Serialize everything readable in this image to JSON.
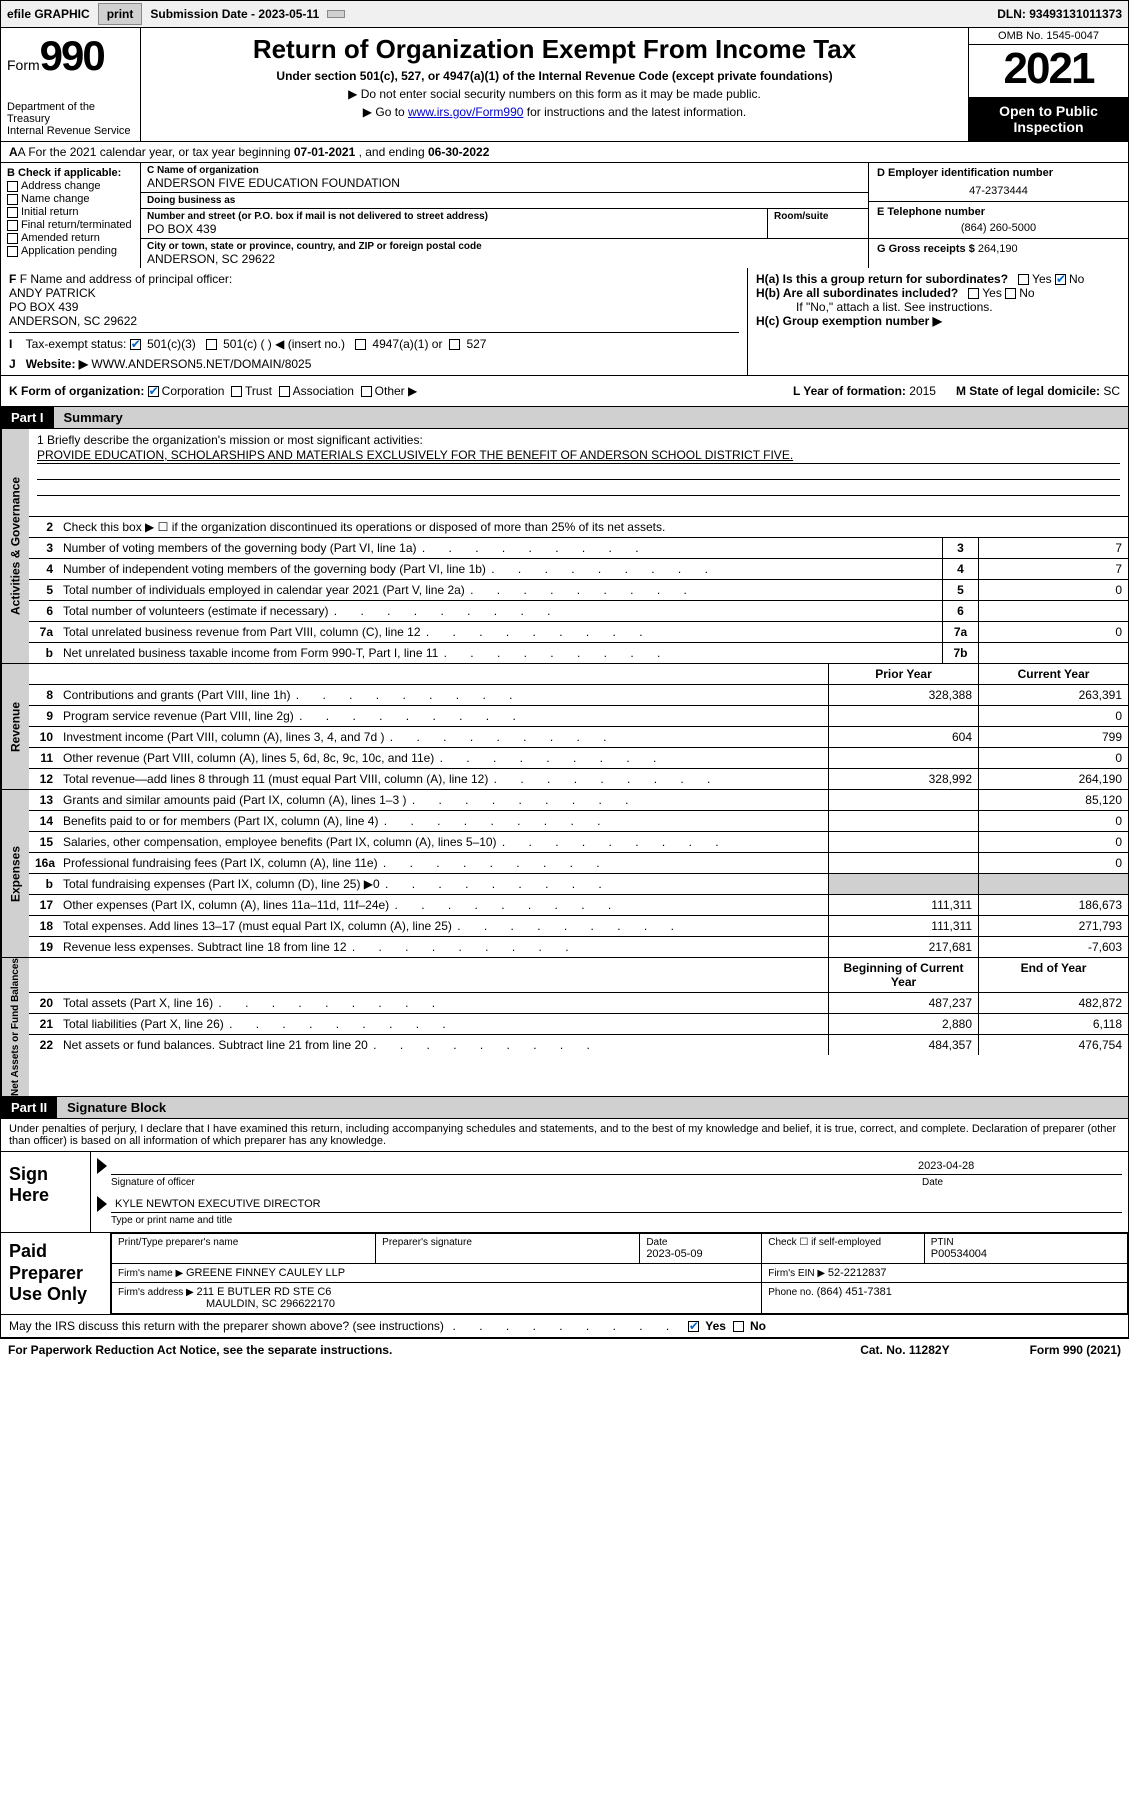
{
  "topbar": {
    "efile": "efile GRAPHIC",
    "print": "print",
    "subdate_label": "Submission Date - ",
    "subdate": "2023-05-11",
    "print_again": " ",
    "dln": "DLN: 93493131011373"
  },
  "header": {
    "form_prefix": "Form",
    "form_num": "990",
    "title": "Return of Organization Exempt From Income Tax",
    "subtitle": "Under section 501(c), 527, or 4947(a)(1) of the Internal Revenue Code (except private foundations)",
    "note1": "▶ Do not enter social security numbers on this form as it may be made public.",
    "note2_pre": "▶ Go to ",
    "note2_link": "www.irs.gov/Form990",
    "note2_post": " for instructions and the latest information.",
    "dept": "Department of the Treasury",
    "irs": "Internal Revenue Service",
    "omb": "OMB No. 1545-0047",
    "year": "2021",
    "inspect1": "Open to Public",
    "inspect2": "Inspection"
  },
  "rowA": {
    "text": "A For the 2021 calendar year, or tax year beginning ",
    "begin": "07-01-2021",
    "mid": " , and ending ",
    "end": "06-30-2022"
  },
  "colB": {
    "hdr": "B Check if applicable:",
    "items": [
      "Address change",
      "Name change",
      "Initial return",
      "Final return/terminated",
      "Amended return",
      "Application pending"
    ]
  },
  "colC": {
    "name_label": "C Name of organization",
    "name": "ANDERSON FIVE EDUCATION FOUNDATION",
    "dba_label": "Doing business as",
    "dba": "",
    "addr_label": "Number and street (or P.O. box if mail is not delivered to street address)",
    "room_label": "Room/suite",
    "addr": "PO BOX 439",
    "city_label": "City or town, state or province, country, and ZIP or foreign postal code",
    "city": "ANDERSON, SC  29622"
  },
  "colDE": {
    "d_label": "D Employer identification number",
    "d_val": "47-2373444",
    "e_label": "E Telephone number",
    "e_val": "(864) 260-5000",
    "g_label": "G Gross receipts $ ",
    "g_val": "264,190"
  },
  "rowF": {
    "label": "F Name and address of principal officer:",
    "l1": "ANDY PATRICK",
    "l2": "PO BOX 439",
    "l3": "ANDERSON, SC  29622"
  },
  "rowH": {
    "ha": "H(a)  Is this a group return for subordinates?",
    "hb": "H(b)  Are all subordinates included?",
    "hb_note": "If \"No,\" attach a list. See instructions.",
    "hc": "H(c)  Group exemption number ▶"
  },
  "rowI": {
    "label": "Tax-exempt status:",
    "o1": "501(c)(3)",
    "o2": "501(c) (   ) ◀ (insert no.)",
    "o3": "4947(a)(1) or",
    "o4": "527"
  },
  "rowJ": {
    "label": "Website: ▶ ",
    "val": "WWW.ANDERSON5.NET/DOMAIN/8025"
  },
  "rowK": {
    "label": "K Form of organization:",
    "o1": "Corporation",
    "o2": "Trust",
    "o3": "Association",
    "o4": "Other ▶",
    "l_label": "L Year of formation: ",
    "l_val": "2015",
    "m_label": "M State of legal domicile: ",
    "m_val": "SC"
  },
  "part1": {
    "num": "Part I",
    "title": "Summary"
  },
  "mission": {
    "q": "1   Briefly describe the organization's mission or most significant activities:",
    "text": "PROVIDE EDUCATION, SCHOLARSHIPS AND MATERIALS EXCLUSIVELY FOR THE BENEFIT OF ANDERSON SCHOOL DISTRICT FIVE."
  },
  "lines_gov": [
    {
      "n": "2",
      "t": "Check this box ▶ ☐  if the organization discontinued its operations or disposed of more than 25% of its net assets.",
      "box": "",
      "v": ""
    },
    {
      "n": "3",
      "t": "Number of voting members of the governing body (Part VI, line 1a)",
      "box": "3",
      "v": "7"
    },
    {
      "n": "4",
      "t": "Number of independent voting members of the governing body (Part VI, line 1b)",
      "box": "4",
      "v": "7"
    },
    {
      "n": "5",
      "t": "Total number of individuals employed in calendar year 2021 (Part V, line 2a)",
      "box": "5",
      "v": "0"
    },
    {
      "n": "6",
      "t": "Total number of volunteers (estimate if necessary)",
      "box": "6",
      "v": ""
    },
    {
      "n": "7a",
      "t": "Total unrelated business revenue from Part VIII, column (C), line 12",
      "box": "7a",
      "v": "0"
    },
    {
      "n": "b",
      "t": "Net unrelated business taxable income from Form 990-T, Part I, line 11",
      "box": "7b",
      "v": ""
    }
  ],
  "rev_hdr": {
    "py": "Prior Year",
    "cy": "Current Year"
  },
  "lines_rev": [
    {
      "n": "8",
      "t": "Contributions and grants (Part VIII, line 1h)",
      "py": "328,388",
      "cy": "263,391"
    },
    {
      "n": "9",
      "t": "Program service revenue (Part VIII, line 2g)",
      "py": "",
      "cy": "0"
    },
    {
      "n": "10",
      "t": "Investment income (Part VIII, column (A), lines 3, 4, and 7d )",
      "py": "604",
      "cy": "799"
    },
    {
      "n": "11",
      "t": "Other revenue (Part VIII, column (A), lines 5, 6d, 8c, 9c, 10c, and 11e)",
      "py": "",
      "cy": "0"
    },
    {
      "n": "12",
      "t": "Total revenue—add lines 8 through 11 (must equal Part VIII, column (A), line 12)",
      "py": "328,992",
      "cy": "264,190"
    }
  ],
  "lines_exp": [
    {
      "n": "13",
      "t": "Grants and similar amounts paid (Part IX, column (A), lines 1–3 )",
      "py": "",
      "cy": "85,120"
    },
    {
      "n": "14",
      "t": "Benefits paid to or for members (Part IX, column (A), line 4)",
      "py": "",
      "cy": "0"
    },
    {
      "n": "15",
      "t": "Salaries, other compensation, employee benefits (Part IX, column (A), lines 5–10)",
      "py": "",
      "cy": "0"
    },
    {
      "n": "16a",
      "t": "Professional fundraising fees (Part IX, column (A), line 11e)",
      "py": "",
      "cy": "0"
    },
    {
      "n": "b",
      "t": "Total fundraising expenses (Part IX, column (D), line 25) ▶0",
      "py": "shade",
      "cy": "shade"
    },
    {
      "n": "17",
      "t": "Other expenses (Part IX, column (A), lines 11a–11d, 11f–24e)",
      "py": "111,311",
      "cy": "186,673"
    },
    {
      "n": "18",
      "t": "Total expenses. Add lines 13–17 (must equal Part IX, column (A), line 25)",
      "py": "111,311",
      "cy": "271,793"
    },
    {
      "n": "19",
      "t": "Revenue less expenses. Subtract line 18 from line 12",
      "py": "217,681",
      "cy": "-7,603"
    }
  ],
  "na_hdr": {
    "py": "Beginning of Current Year",
    "cy": "End of Year"
  },
  "lines_na": [
    {
      "n": "20",
      "t": "Total assets (Part X, line 16)",
      "py": "487,237",
      "cy": "482,872"
    },
    {
      "n": "21",
      "t": "Total liabilities (Part X, line 26)",
      "py": "2,880",
      "cy": "6,118"
    },
    {
      "n": "22",
      "t": "Net assets or fund balances. Subtract line 21 from line 20",
      "py": "484,357",
      "cy": "476,754"
    }
  ],
  "sidebars": {
    "gov": "Activities & Governance",
    "rev": "Revenue",
    "exp": "Expenses",
    "na": "Net Assets or Fund Balances"
  },
  "part2": {
    "num": "Part II",
    "title": "Signature Block"
  },
  "sig": {
    "decl": "Under penalties of perjury, I declare that I have examined this return, including accompanying schedules and statements, and to the best of my knowledge and belief, it is true, correct, and complete. Declaration of preparer (other than officer) is based on all information of which preparer has any knowledge.",
    "sign_here": "Sign Here",
    "off_sig_label": "Signature of officer",
    "date_label": "Date",
    "date": "2023-04-28",
    "name": "KYLE NEWTON  EXECUTIVE DIRECTOR",
    "name_label": "Type or print name and title"
  },
  "prep": {
    "title": "Paid Preparer Use Only",
    "h1": "Print/Type preparer's name",
    "h2": "Preparer's signature",
    "h3": "Date",
    "h3v": "2023-05-09",
    "h4": "Check ☐ if self-employed",
    "h5": "PTIN",
    "h5v": "P00534004",
    "firm_label": "Firm's name    ▶ ",
    "firm": "GREENE FINNEY CAULEY LLP",
    "ein_label": "Firm's EIN ▶ ",
    "ein": "52-2212837",
    "addr_label": "Firm's address ▶ ",
    "addr1": "211 E BUTLER RD STE C6",
    "addr2": "MAULDIN, SC  296622170",
    "phone_label": "Phone no. ",
    "phone": "(864) 451-7381"
  },
  "discuss": {
    "q": "May the IRS discuss this return with the preparer shown above? (see instructions)",
    "yes": "Yes",
    "no": "No"
  },
  "footer": {
    "l": "For Paperwork Reduction Act Notice, see the separate instructions.",
    "m": "Cat. No. 11282Y",
    "r": "Form 990 (2021)"
  }
}
